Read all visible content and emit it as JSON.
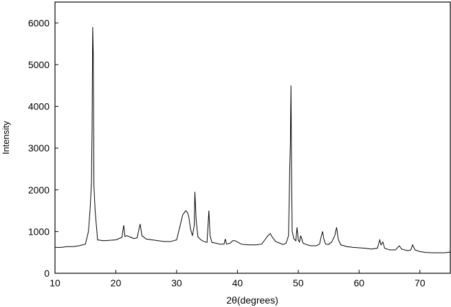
{
  "chart_data": {
    "type": "line",
    "title": "",
    "xlabel": "2θ(degrees)",
    "ylabel": "Intensity",
    "xlim": [
      10,
      75
    ],
    "ylim": [
      0,
      6500
    ],
    "xticks": [
      10,
      20,
      30,
      40,
      50,
      60,
      70
    ],
    "yticks": [
      0,
      1000,
      2000,
      3000,
      4000,
      5000,
      6000
    ],
    "grid": false,
    "legend": "none",
    "line_color": "#000000",
    "series": [
      {
        "x": [
          10.0,
          11.0,
          12.0,
          13.0,
          14.0,
          15.0,
          15.5,
          15.8,
          16.0,
          16.1,
          16.2,
          16.3,
          16.4,
          16.6,
          17.0,
          18.0,
          19.0,
          20.0,
          21.0,
          21.3,
          21.5,
          21.8,
          22.5,
          23.0,
          23.5,
          23.8,
          24.0,
          24.3,
          25.0,
          26.0,
          27.0,
          28.0,
          29.0,
          30.0,
          30.5,
          31.0,
          31.5,
          31.8,
          32.0,
          32.3,
          32.6,
          32.9,
          33.0,
          33.2,
          33.5,
          34.0,
          34.5,
          35.0,
          35.3,
          35.5,
          35.8,
          36.5,
          37.0,
          37.8,
          38.0,
          38.2,
          38.8,
          39.2,
          39.6,
          40.0,
          40.6,
          41.0,
          42.0,
          43.0,
          44.0,
          44.5,
          45.0,
          45.4,
          45.8,
          46.3,
          47.0,
          47.5,
          48.0,
          48.4,
          48.6,
          48.7,
          48.8,
          48.9,
          49.0,
          49.3,
          49.6,
          49.8,
          50.0,
          50.2,
          50.4,
          50.8,
          51.5,
          52.0,
          53.0,
          53.5,
          53.8,
          54.0,
          54.2,
          54.5,
          55.0,
          55.5,
          56.0,
          56.3,
          56.6,
          57.0,
          58.0,
          59.0,
          60.0,
          61.0,
          62.0,
          63.0,
          63.4,
          63.6,
          63.9,
          64.2,
          65.0,
          66.0,
          66.6,
          67.0,
          68.0,
          68.5,
          68.8,
          69.2,
          70.0,
          71.0,
          72.0,
          73.0,
          74.0,
          75.0
        ],
        "values": [
          620,
          620,
          640,
          640,
          660,
          700,
          1000,
          1600,
          2200,
          3500,
          5900,
          5200,
          2100,
          1500,
          800,
          780,
          790,
          800,
          860,
          1150,
          880,
          900,
          860,
          830,
          850,
          1050,
          1180,
          900,
          820,
          800,
          780,
          760,
          760,
          800,
          1100,
          1400,
          1500,
          1450,
          1350,
          1050,
          900,
          1150,
          1950,
          1300,
          870,
          800,
          760,
          740,
          1500,
          900,
          740,
          720,
          700,
          700,
          820,
          700,
          720,
          780,
          780,
          750,
          700,
          690,
          680,
          680,
          700,
          800,
          900,
          950,
          850,
          760,
          720,
          690,
          720,
          900,
          2500,
          3100,
          4500,
          2400,
          1000,
          820,
          780,
          1100,
          800,
          750,
          900,
          720,
          680,
          660,
          660,
          700,
          900,
          1000,
          820,
          700,
          690,
          750,
          900,
          1100,
          800,
          680,
          640,
          620,
          610,
          600,
          580,
          600,
          800,
          680,
          750,
          600,
          560,
          560,
          660,
          580,
          540,
          560,
          680,
          560,
          520,
          500,
          490,
          490,
          490,
          510
        ]
      }
    ]
  }
}
